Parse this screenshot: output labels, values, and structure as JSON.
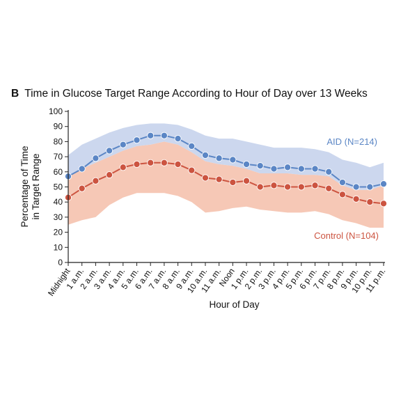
{
  "panel": {
    "letter": "B",
    "title": "Time in Glucose Target Range According to Hour of Day over 13 Weeks"
  },
  "chart_data": {
    "type": "line",
    "title": "Time in Glucose Target Range According to Hour of Day over 13 Weeks",
    "xlabel": "Hour of Day",
    "ylabel": "Percentage of Time in Target Range",
    "ylabel_lines": [
      "Percentage of Time",
      "in Target Range"
    ],
    "ylim": [
      0,
      100
    ],
    "yticks": [
      0,
      10,
      20,
      30,
      40,
      50,
      60,
      70,
      80,
      90,
      100
    ],
    "categories": [
      "Midnight",
      "1 a.m.",
      "2 a.m.",
      "3 a.m.",
      "4 a.m.",
      "5 a.m.",
      "6 a.m.",
      "7 a.m.",
      "8 a.m.",
      "9 a.m.",
      "10 a.m.",
      "11 a.m.",
      "Noon",
      "1 p.m.",
      "2 p.m.",
      "3 p.m.",
      "4 p.m.",
      "5 p.m.",
      "6 p.m.",
      "7 p.m.",
      "8 p.m.",
      "9 p.m.",
      "10 p.m.",
      "11 p.m."
    ],
    "grid": false,
    "series": [
      {
        "name": "AID (N=214)",
        "color": "#5b86c5",
        "band_color": "#c6d3ec",
        "values": [
          57,
          62,
          69,
          74,
          78,
          81,
          84,
          84,
          82,
          77,
          71,
          69,
          68,
          65,
          64,
          62,
          63,
          62,
          62,
          60,
          53,
          50,
          50,
          52
        ],
        "band_low": [
          57,
          62,
          66,
          70,
          74,
          77,
          78,
          80,
          78,
          73,
          67,
          65,
          64,
          62,
          59,
          59,
          59,
          58,
          58,
          57,
          51,
          48,
          48,
          51
        ],
        "band_high": [
          71,
          78,
          82,
          86,
          89,
          91,
          92,
          92,
          91,
          88,
          84,
          82,
          82,
          80,
          78,
          76,
          76,
          76,
          75,
          73,
          68,
          66,
          63,
          66
        ]
      },
      {
        "name": "Control (N=104)",
        "color": "#cc5440",
        "band_color": "#f5c2ae",
        "values": [
          43,
          49,
          54,
          58,
          63,
          65,
          66,
          66,
          65,
          61,
          56,
          55,
          53,
          54,
          50,
          51,
          50,
          50,
          51,
          49,
          45,
          42,
          40,
          39
        ],
        "band_low": [
          25,
          28,
          30,
          38,
          43,
          46,
          46,
          46,
          44,
          40,
          33,
          34,
          36,
          37,
          35,
          34,
          33,
          33,
          34,
          32,
          28,
          26,
          23,
          23
        ],
        "band_high": [
          57,
          62,
          66,
          70,
          74,
          77,
          78,
          80,
          78,
          73,
          67,
          65,
          64,
          62,
          59,
          59,
          59,
          58,
          58,
          57,
          51,
          48,
          48,
          51
        ]
      }
    ]
  }
}
